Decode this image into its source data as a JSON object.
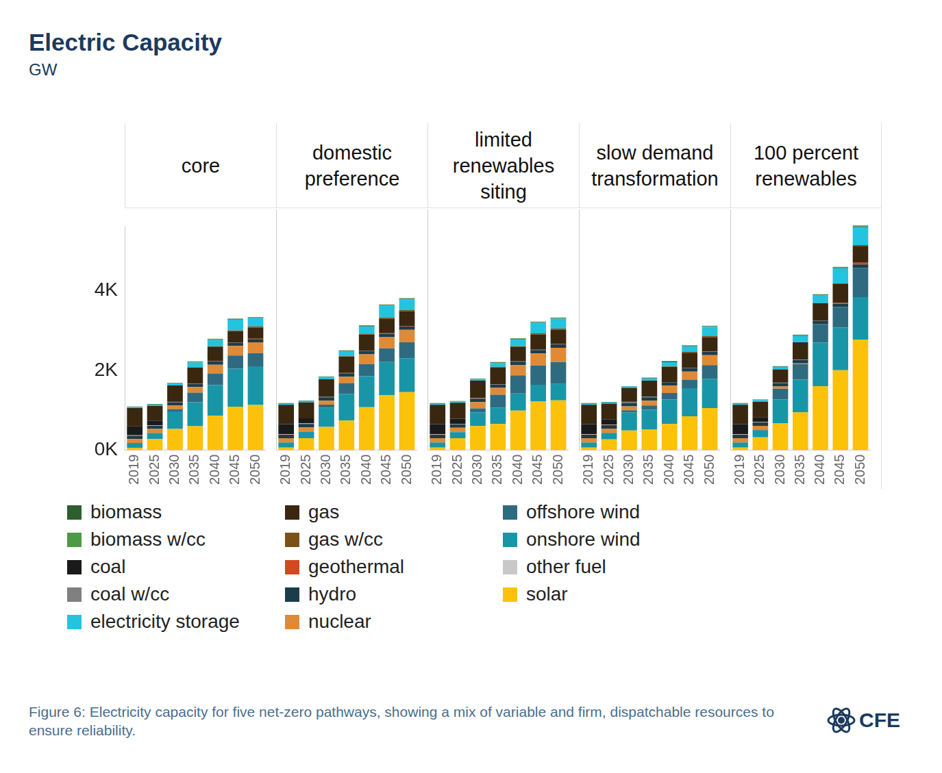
{
  "title": "Electric Capacity",
  "subtitle": "GW",
  "caption": "Figure 6: Electricity capacity for five net-zero pathways, showing a mix of variable and firm, dispatchable resources to ensure reliability.",
  "logo": "CFE",
  "chart_data": [
    {
      "type": "bar",
      "title": "core",
      "stacked": true,
      "grid": false,
      "categories": [
        "2019",
        "2025",
        "2030",
        "2035",
        "2040",
        "2045",
        "2050"
      ],
      "ylim": [
        0,
        5600
      ],
      "yticks": [
        {
          "value": 0,
          "label": "0K"
        },
        {
          "value": 2000,
          "label": "2K"
        },
        {
          "value": 4000,
          "label": "4K"
        }
      ],
      "series": [
        {
          "name": "biomass",
          "color": "#2d5e2e",
          "values": [
            15,
            12,
            10,
            15,
            20,
            15,
            15
          ]
        },
        {
          "name": "biomass w/cc",
          "color": "#4c9a45",
          "values": [
            0,
            0,
            5,
            10,
            10,
            10,
            10
          ]
        },
        {
          "name": "coal",
          "color": "#1a1a1a",
          "values": [
            230,
            120,
            10,
            0,
            0,
            0,
            0
          ]
        },
        {
          "name": "coal w/cc",
          "color": "#808080",
          "values": [
            0,
            0,
            0,
            0,
            0,
            0,
            0
          ]
        },
        {
          "name": "electricity storage",
          "color": "#22c4e0",
          "values": [
            25,
            30,
            50,
            130,
            160,
            270,
            210
          ]
        },
        {
          "name": "gas",
          "color": "#3a2710",
          "values": [
            450,
            370,
            400,
            400,
            350,
            280,
            280
          ]
        },
        {
          "name": "gas w/cc",
          "color": "#7a5218",
          "values": [
            0,
            0,
            0,
            0,
            20,
            20,
            30
          ]
        },
        {
          "name": "geothermal",
          "color": "#d2491f",
          "values": [
            4,
            4,
            5,
            5,
            8,
            10,
            10
          ]
        },
        {
          "name": "hydro",
          "color": "#1b3d4a",
          "values": [
            80,
            80,
            80,
            80,
            80,
            80,
            80
          ]
        },
        {
          "name": "nuclear",
          "color": "#e08a36",
          "values": [
            100,
            95,
            90,
            140,
            220,
            240,
            270
          ]
        },
        {
          "name": "offshore wind",
          "color": "#2f6b80",
          "values": [
            0,
            5,
            60,
            240,
            290,
            330,
            330
          ]
        },
        {
          "name": "onshore wind",
          "color": "#1896a8",
          "values": [
            120,
            150,
            440,
            600,
            770,
            950,
            970
          ]
        },
        {
          "name": "other fuel",
          "color": "#c8c8c8",
          "values": [
            10,
            8,
            5,
            3,
            0,
            0,
            0
          ]
        },
        {
          "name": "solar",
          "color": "#fcc20a",
          "values": [
            60,
            280,
            530,
            600,
            860,
            1090,
            1130
          ]
        }
      ]
    },
    {
      "type": "bar",
      "title": "domestic preference",
      "stacked": true,
      "grid": false,
      "tick_labels": "x",
      "categories": [
        "2019",
        "2025",
        "2030",
        "2035",
        "2040",
        "2045",
        "2050"
      ],
      "ylim": [
        0,
        5600
      ],
      "yticks": [
        {
          "value": 0,
          "label": "0K"
        },
        {
          "value": 2000,
          "label": "2K"
        },
        {
          "value": 4000,
          "label": "4K"
        }
      ],
      "series": [
        {
          "name": "biomass",
          "color": "#2d5e2e",
          "values": [
            15,
            12,
            10,
            15,
            20,
            15,
            15
          ]
        },
        {
          "name": "biomass w/cc",
          "color": "#4c9a45",
          "values": [
            0,
            0,
            5,
            10,
            10,
            10,
            10
          ]
        },
        {
          "name": "coal",
          "color": "#1a1a1a",
          "values": [
            230,
            120,
            10,
            0,
            0,
            0,
            0
          ]
        },
        {
          "name": "coal w/cc",
          "color": "#808080",
          "values": [
            0,
            0,
            0,
            0,
            0,
            0,
            0
          ]
        },
        {
          "name": "electricity storage",
          "color": "#22c4e0",
          "values": [
            25,
            30,
            50,
            110,
            170,
            280,
            250
          ]
        },
        {
          "name": "gas",
          "color": "#3a2710",
          "values": [
            450,
            370,
            400,
            380,
            370,
            340,
            340
          ]
        },
        {
          "name": "gas w/cc",
          "color": "#7a5218",
          "values": [
            0,
            0,
            0,
            10,
            20,
            25,
            30
          ]
        },
        {
          "name": "geothermal",
          "color": "#d2491f",
          "values": [
            4,
            4,
            5,
            5,
            8,
            10,
            10
          ]
        },
        {
          "name": "hydro",
          "color": "#1b3d4a",
          "values": [
            80,
            80,
            80,
            80,
            80,
            80,
            80
          ]
        },
        {
          "name": "nuclear",
          "color": "#e08a36",
          "values": [
            100,
            95,
            90,
            150,
            230,
            260,
            290
          ]
        },
        {
          "name": "offshore wind",
          "color": "#2f6b80",
          "values": [
            0,
            5,
            70,
            250,
            280,
            320,
            370
          ]
        },
        {
          "name": "onshore wind",
          "color": "#1896a8",
          "values": [
            120,
            150,
            450,
            620,
            720,
            770,
            790
          ]
        },
        {
          "name": "other fuel",
          "color": "#c8c8c8",
          "values": [
            10,
            8,
            5,
            3,
            0,
            0,
            0
          ]
        },
        {
          "name": "solar",
          "color": "#fcc20a",
          "values": [
            60,
            280,
            540,
            690,
            1000,
            1280,
            1350
          ]
        }
      ]
    },
    {
      "type": "bar",
      "title": "limited renewables siting",
      "stacked": true,
      "grid": false,
      "tick_labels": "x",
      "categories": [
        "2019",
        "2025",
        "2030",
        "2035",
        "2040",
        "2045",
        "2050"
      ],
      "ylim": [
        0,
        5600
      ],
      "yticks": [
        {
          "value": 0,
          "label": "0K"
        },
        {
          "value": 2000,
          "label": "2K"
        },
        {
          "value": 4000,
          "label": "4K"
        }
      ],
      "series": [
        {
          "name": "biomass",
          "color": "#2d5e2e",
          "values": [
            15,
            12,
            10,
            15,
            15,
            15,
            15
          ]
        },
        {
          "name": "biomass w/cc",
          "color": "#4c9a45",
          "values": [
            0,
            0,
            5,
            10,
            10,
            10,
            10
          ]
        },
        {
          "name": "coal",
          "color": "#1a1a1a",
          "values": [
            230,
            120,
            10,
            0,
            0,
            0,
            0
          ]
        },
        {
          "name": "coal w/cc",
          "color": "#808080",
          "values": [
            0,
            0,
            0,
            0,
            0,
            0,
            0
          ]
        },
        {
          "name": "electricity storage",
          "color": "#22c4e0",
          "values": [
            25,
            30,
            35,
            90,
            160,
            250,
            230
          ]
        },
        {
          "name": "gas",
          "color": "#3a2710",
          "values": [
            450,
            370,
            400,
            390,
            330,
            350,
            330
          ]
        },
        {
          "name": "gas w/cc",
          "color": "#7a5218",
          "values": [
            0,
            0,
            0,
            10,
            20,
            25,
            30
          ]
        },
        {
          "name": "geothermal",
          "color": "#d2491f",
          "values": [
            4,
            4,
            5,
            5,
            8,
            10,
            10
          ]
        },
        {
          "name": "hydro",
          "color": "#1b3d4a",
          "values": [
            80,
            80,
            80,
            80,
            80,
            80,
            80
          ]
        },
        {
          "name": "nuclear",
          "color": "#e08a36",
          "values": [
            100,
            95,
            150,
            160,
            240,
            280,
            330
          ]
        },
        {
          "name": "offshore wind",
          "color": "#2f6b80",
          "values": [
            0,
            5,
            90,
            300,
            420,
            450,
            510
          ]
        },
        {
          "name": "onshore wind",
          "color": "#1896a8",
          "values": [
            120,
            140,
            320,
            380,
            400,
            390,
            380
          ]
        },
        {
          "name": "other fuel",
          "color": "#c8c8c8",
          "values": [
            10,
            8,
            5,
            3,
            0,
            0,
            0
          ]
        },
        {
          "name": "solar",
          "color": "#fcc20a",
          "values": [
            60,
            280,
            560,
            610,
            920,
            1130,
            1160
          ]
        }
      ]
    },
    {
      "type": "bar",
      "title": "slow demand transformation",
      "stacked": true,
      "grid": false,
      "tick_labels": "x",
      "categories": [
        "2019",
        "2025",
        "2030",
        "2035",
        "2040",
        "2045",
        "2050"
      ],
      "ylim": [
        0,
        5600
      ],
      "yticks": [
        {
          "value": 0,
          "label": "0K"
        },
        {
          "value": 2000,
          "label": "2K"
        },
        {
          "value": 4000,
          "label": "4K"
        }
      ],
      "series": [
        {
          "name": "biomass",
          "color": "#2d5e2e",
          "values": [
            15,
            12,
            10,
            15,
            20,
            15,
            15
          ]
        },
        {
          "name": "biomass w/cc",
          "color": "#4c9a45",
          "values": [
            0,
            0,
            0,
            5,
            10,
            10,
            10
          ]
        },
        {
          "name": "coal",
          "color": "#1a1a1a",
          "values": [
            230,
            120,
            20,
            10,
            0,
            0,
            0
          ]
        },
        {
          "name": "coal w/cc",
          "color": "#808080",
          "values": [
            0,
            0,
            0,
            0,
            0,
            0,
            0
          ]
        },
        {
          "name": "electricity storage",
          "color": "#22c4e0",
          "values": [
            25,
            30,
            30,
            50,
            100,
            130,
            210
          ]
        },
        {
          "name": "gas",
          "color": "#3a2710",
          "values": [
            450,
            370,
            320,
            370,
            350,
            350,
            330
          ]
        },
        {
          "name": "gas w/cc",
          "color": "#7a5218",
          "values": [
            0,
            0,
            0,
            0,
            10,
            20,
            30
          ]
        },
        {
          "name": "geothermal",
          "color": "#d2491f",
          "values": [
            4,
            4,
            5,
            5,
            6,
            8,
            10
          ]
        },
        {
          "name": "hydro",
          "color": "#1b3d4a",
          "values": [
            80,
            80,
            80,
            80,
            80,
            80,
            80
          ]
        },
        {
          "name": "nuclear",
          "color": "#e08a36",
          "values": [
            100,
            95,
            90,
            110,
            170,
            190,
            230
          ]
        },
        {
          "name": "offshore wind",
          "color": "#2f6b80",
          "values": [
            0,
            5,
            50,
            100,
            150,
            200,
            320
          ]
        },
        {
          "name": "onshore wind",
          "color": "#1896a8",
          "values": [
            120,
            150,
            420,
            460,
            570,
            650,
            680
          ]
        },
        {
          "name": "other fuel",
          "color": "#c8c8c8",
          "values": [
            10,
            8,
            5,
            3,
            0,
            0,
            0
          ]
        },
        {
          "name": "solar",
          "color": "#fcc20a",
          "values": [
            60,
            250,
            460,
            480,
            610,
            790,
            980
          ]
        }
      ]
    },
    {
      "type": "bar",
      "title": "100 percent renewables",
      "stacked": true,
      "grid": false,
      "tick_labels": "x",
      "categories": [
        "2019",
        "2025",
        "2030",
        "2035",
        "2040",
        "2045",
        "2050"
      ],
      "ylim": [
        0,
        5600
      ],
      "yticks": [
        {
          "value": 0,
          "label": "0K"
        },
        {
          "value": 2000,
          "label": "2K"
        },
        {
          "value": 4000,
          "label": "4K"
        }
      ],
      "series": [
        {
          "name": "biomass",
          "color": "#2d5e2e",
          "values": [
            15,
            12,
            10,
            20,
            20,
            20,
            20
          ]
        },
        {
          "name": "biomass w/cc",
          "color": "#4c9a45",
          "values": [
            0,
            0,
            5,
            10,
            10,
            10,
            20
          ]
        },
        {
          "name": "coal",
          "color": "#1a1a1a",
          "values": [
            230,
            110,
            10,
            0,
            0,
            0,
            0
          ]
        },
        {
          "name": "coal w/cc",
          "color": "#808080",
          "values": [
            0,
            0,
            0,
            0,
            0,
            0,
            0
          ]
        },
        {
          "name": "electricity storage",
          "color": "#22c4e0",
          "values": [
            25,
            40,
            60,
            150,
            180,
            350,
            420
          ]
        },
        {
          "name": "gas",
          "color": "#3a2710",
          "values": [
            450,
            360,
            300,
            400,
            400,
            440,
            380
          ]
        },
        {
          "name": "gas w/cc",
          "color": "#7a5218",
          "values": [
            0,
            0,
            0,
            0,
            0,
            20,
            30
          ]
        },
        {
          "name": "geothermal",
          "color": "#d2491f",
          "values": [
            4,
            4,
            5,
            5,
            10,
            15,
            40
          ]
        },
        {
          "name": "hydro",
          "color": "#1b3d4a",
          "values": [
            80,
            80,
            80,
            80,
            80,
            80,
            80
          ]
        },
        {
          "name": "nuclear",
          "color": "#e08a36",
          "values": [
            100,
            95,
            50,
            20,
            0,
            0,
            0
          ]
        },
        {
          "name": "offshore wind",
          "color": "#2f6b80",
          "values": [
            0,
            10,
            250,
            360,
            430,
            480,
            680
          ]
        },
        {
          "name": "onshore wind",
          "color": "#1896a8",
          "values": [
            120,
            160,
            550,
            760,
            1010,
            990,
            990
          ]
        },
        {
          "name": "other fuel",
          "color": "#c8c8c8",
          "values": [
            10,
            8,
            5,
            3,
            0,
            0,
            0
          ]
        },
        {
          "name": "solar",
          "color": "#fcc20a",
          "values": [
            60,
            300,
            630,
            880,
            1490,
            1860,
            2570
          ]
        }
      ]
    }
  ]
}
